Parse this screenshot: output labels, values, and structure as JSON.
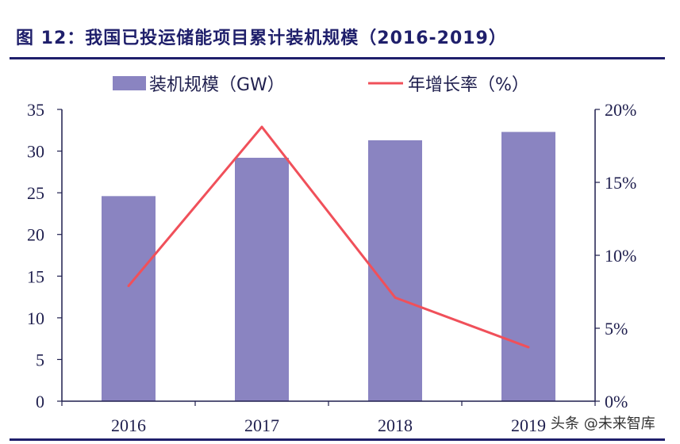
{
  "figure_title": "图 12：我国已投运储能项目累计装机规模（2016-2019）",
  "watermark": "头条 @未来智库",
  "colors": {
    "bar": "#8a84c1",
    "line": "#f0505a",
    "axis": "#1f1f4e",
    "title": "#1f1f6b"
  },
  "chart_data": {
    "type": "bar",
    "categories": [
      "2016",
      "2017",
      "2018",
      "2019"
    ],
    "series": [
      {
        "name": "装机规模（GW）",
        "type": "bar",
        "axis": "left",
        "values": [
          24.6,
          29.2,
          31.3,
          32.3
        ]
      },
      {
        "name": "年增长率（%）",
        "type": "line",
        "axis": "right",
        "values": [
          7.9,
          18.8,
          7.1,
          3.7
        ]
      }
    ],
    "y_left": {
      "ylim": [
        0,
        35
      ],
      "ticks": [
        "0",
        "5",
        "10",
        "15",
        "20",
        "25",
        "30",
        "35"
      ]
    },
    "y_right": {
      "ylim": [
        0,
        20
      ],
      "ticks": [
        "0%",
        "5%",
        "10%",
        "15%",
        "20%"
      ]
    },
    "legend_position": "top",
    "grid": false
  }
}
